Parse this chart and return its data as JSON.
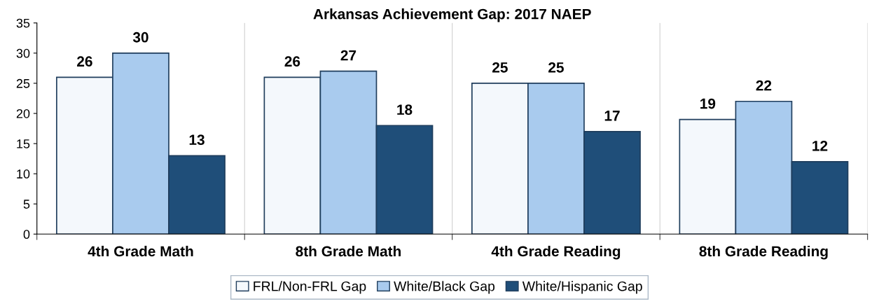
{
  "chart_data": {
    "type": "bar",
    "title": "Arkansas Achievement Gap: 2017 NAEP",
    "categories": [
      "4th Grade Math",
      "8th Grade Math",
      "4th Grade Reading",
      "8th Grade Reading"
    ],
    "series": [
      {
        "name": "FRL/Non-FRL Gap",
        "color": "#f4f8fc",
        "values": [
          26,
          26,
          25,
          19
        ]
      },
      {
        "name": "White/Black Gap",
        "color": "#a9cbee",
        "values": [
          30,
          27,
          25,
          22
        ]
      },
      {
        "name": "White/Hispanic Gap",
        "color": "#1f4e79",
        "values": [
          13,
          18,
          17,
          12
        ]
      }
    ],
    "ylim": [
      0,
      35
    ],
    "yticks": [
      0,
      5,
      10,
      15,
      20,
      25,
      30,
      35
    ],
    "grid": "x",
    "legend": "bottom",
    "data_labels": true
  }
}
